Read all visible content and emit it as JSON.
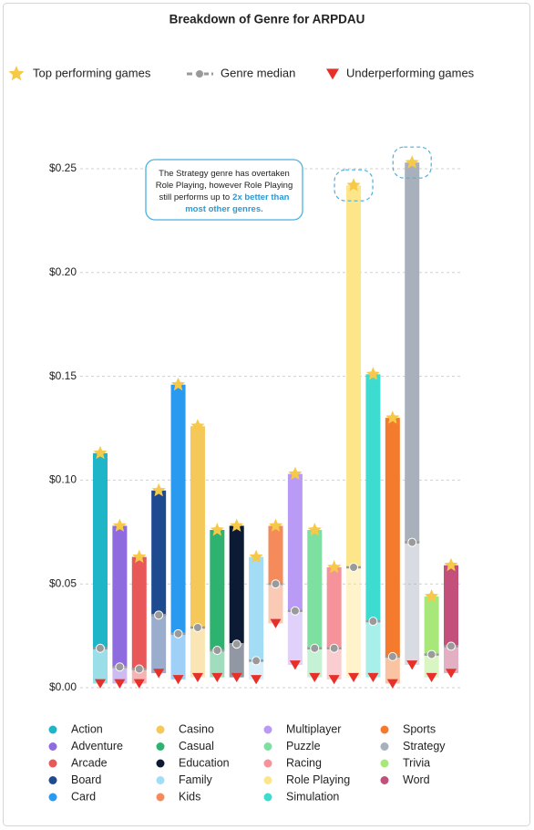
{
  "chart_data": {
    "type": "range_bar",
    "title": "Breakdown of Genre for ARPDAU",
    "annotation": [
      {
        "text": "The Strategy genre has overtaken"
      },
      {
        "text": "Role Playing, however Role Playing"
      },
      {
        "text": "still performs up to",
        "highlight": "2x better than"
      },
      {
        "highlight": "most other genres."
      }
    ],
    "categories": [
      "Action",
      "Adventure",
      "Arcade",
      "Board",
      "Card",
      "Casino",
      "Casual",
      "Education",
      "Family",
      "Kids",
      "Multiplayer",
      "Puzzle",
      "Racing",
      "Role Playing",
      "Simulation",
      "Sports",
      "Strategy",
      "Trivia",
      "Word"
    ],
    "category_colors": [
      "#1fb5c9",
      "#8f6be0",
      "#e85858",
      "#1e4a8f",
      "#2a9af0",
      "#f5c85a",
      "#2db36f",
      "#0d1a33",
      "#a3dcf5",
      "#f58a5a",
      "#b99af5",
      "#7ee0a0",
      "#f5929a",
      "#fde58a",
      "#3ddbd0",
      "#f47a2e",
      "#a8b0bc",
      "#a8e87a",
      "#c2507a"
    ],
    "series": [
      {
        "name": "Top performing games",
        "color": "#f7c948",
        "values": [
          0.113,
          0.078,
          0.063,
          0.095,
          0.146,
          0.126,
          0.076,
          0.078,
          0.063,
          0.078,
          0.103,
          0.076,
          0.058,
          0.242,
          0.151,
          0.13,
          0.253,
          0.044,
          0.059
        ]
      },
      {
        "name": "Genre median",
        "color": "#9a9a9a",
        "values": [
          0.019,
          0.01,
          0.009,
          0.035,
          0.026,
          0.029,
          0.018,
          0.021,
          0.013,
          0.05,
          0.037,
          0.019,
          0.019,
          0.058,
          0.032,
          0.015,
          0.07,
          0.016,
          0.02
        ]
      },
      {
        "name": "Underperforming games",
        "color": "#e8302a",
        "values": [
          0.002,
          0.002,
          0.002,
          0.007,
          0.004,
          0.005,
          0.005,
          0.005,
          0.004,
          0.031,
          0.011,
          0.005,
          0.004,
          0.005,
          0.005,
          0.002,
          0.011,
          0.005,
          0.007
        ]
      }
    ],
    "ylim": [
      0,
      0.25
    ],
    "yticks": [
      {
        "value": 0,
        "label": "$0.00"
      },
      {
        "value": 0.05,
        "label": "$0.05"
      },
      {
        "value": 0.1,
        "label": "$0.10"
      },
      {
        "value": 0.15,
        "label": "$0.15"
      },
      {
        "value": 0.2,
        "label": "$0.20"
      },
      {
        "value": 0.25,
        "label": "$0.25"
      }
    ],
    "grid": true
  }
}
